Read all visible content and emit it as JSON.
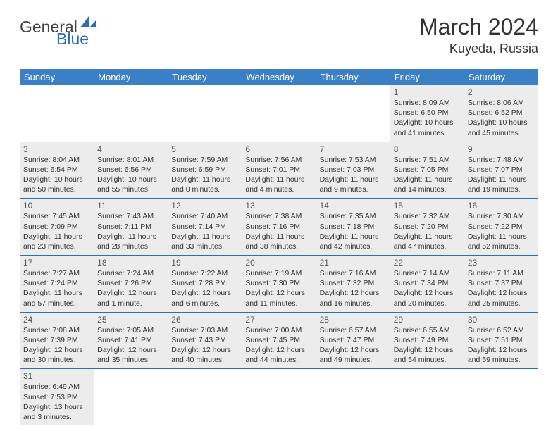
{
  "logo": {
    "text1": "General",
    "text2": "Blue"
  },
  "title": "March 2024",
  "location": "Kuyeda, Russia",
  "colors": {
    "header_bg": "#3b7fc4",
    "header_text": "#ffffff",
    "row_border": "#2a6fb5",
    "shaded_bg": "#ececec",
    "text": "#333333",
    "logo_blue": "#2a6fb5"
  },
  "weekdays": [
    "Sunday",
    "Monday",
    "Tuesday",
    "Wednesday",
    "Thursday",
    "Friday",
    "Saturday"
  ],
  "layout": {
    "columns": 7,
    "rows": 6,
    "first_day_column": 5
  },
  "days": [
    {
      "n": 1,
      "sr": "8:09 AM",
      "ss": "6:50 PM",
      "dl": "10 hours and 41 minutes."
    },
    {
      "n": 2,
      "sr": "8:06 AM",
      "ss": "6:52 PM",
      "dl": "10 hours and 45 minutes."
    },
    {
      "n": 3,
      "sr": "8:04 AM",
      "ss": "6:54 PM",
      "dl": "10 hours and 50 minutes."
    },
    {
      "n": 4,
      "sr": "8:01 AM",
      "ss": "6:56 PM",
      "dl": "10 hours and 55 minutes."
    },
    {
      "n": 5,
      "sr": "7:59 AM",
      "ss": "6:59 PM",
      "dl": "11 hours and 0 minutes."
    },
    {
      "n": 6,
      "sr": "7:56 AM",
      "ss": "7:01 PM",
      "dl": "11 hours and 4 minutes."
    },
    {
      "n": 7,
      "sr": "7:53 AM",
      "ss": "7:03 PM",
      "dl": "11 hours and 9 minutes."
    },
    {
      "n": 8,
      "sr": "7:51 AM",
      "ss": "7:05 PM",
      "dl": "11 hours and 14 minutes."
    },
    {
      "n": 9,
      "sr": "7:48 AM",
      "ss": "7:07 PM",
      "dl": "11 hours and 19 minutes."
    },
    {
      "n": 10,
      "sr": "7:45 AM",
      "ss": "7:09 PM",
      "dl": "11 hours and 23 minutes."
    },
    {
      "n": 11,
      "sr": "7:43 AM",
      "ss": "7:11 PM",
      "dl": "11 hours and 28 minutes."
    },
    {
      "n": 12,
      "sr": "7:40 AM",
      "ss": "7:14 PM",
      "dl": "11 hours and 33 minutes."
    },
    {
      "n": 13,
      "sr": "7:38 AM",
      "ss": "7:16 PM",
      "dl": "11 hours and 38 minutes."
    },
    {
      "n": 14,
      "sr": "7:35 AM",
      "ss": "7:18 PM",
      "dl": "11 hours and 42 minutes."
    },
    {
      "n": 15,
      "sr": "7:32 AM",
      "ss": "7:20 PM",
      "dl": "11 hours and 47 minutes."
    },
    {
      "n": 16,
      "sr": "7:30 AM",
      "ss": "7:22 PM",
      "dl": "11 hours and 52 minutes."
    },
    {
      "n": 17,
      "sr": "7:27 AM",
      "ss": "7:24 PM",
      "dl": "11 hours and 57 minutes."
    },
    {
      "n": 18,
      "sr": "7:24 AM",
      "ss": "7:26 PM",
      "dl": "12 hours and 1 minute."
    },
    {
      "n": 19,
      "sr": "7:22 AM",
      "ss": "7:28 PM",
      "dl": "12 hours and 6 minutes."
    },
    {
      "n": 20,
      "sr": "7:19 AM",
      "ss": "7:30 PM",
      "dl": "12 hours and 11 minutes."
    },
    {
      "n": 21,
      "sr": "7:16 AM",
      "ss": "7:32 PM",
      "dl": "12 hours and 16 minutes."
    },
    {
      "n": 22,
      "sr": "7:14 AM",
      "ss": "7:34 PM",
      "dl": "12 hours and 20 minutes."
    },
    {
      "n": 23,
      "sr": "7:11 AM",
      "ss": "7:37 PM",
      "dl": "12 hours and 25 minutes."
    },
    {
      "n": 24,
      "sr": "7:08 AM",
      "ss": "7:39 PM",
      "dl": "12 hours and 30 minutes."
    },
    {
      "n": 25,
      "sr": "7:05 AM",
      "ss": "7:41 PM",
      "dl": "12 hours and 35 minutes."
    },
    {
      "n": 26,
      "sr": "7:03 AM",
      "ss": "7:43 PM",
      "dl": "12 hours and 40 minutes."
    },
    {
      "n": 27,
      "sr": "7:00 AM",
      "ss": "7:45 PM",
      "dl": "12 hours and 44 minutes."
    },
    {
      "n": 28,
      "sr": "6:57 AM",
      "ss": "7:47 PM",
      "dl": "12 hours and 49 minutes."
    },
    {
      "n": 29,
      "sr": "6:55 AM",
      "ss": "7:49 PM",
      "dl": "12 hours and 54 minutes."
    },
    {
      "n": 30,
      "sr": "6:52 AM",
      "ss": "7:51 PM",
      "dl": "12 hours and 59 minutes."
    },
    {
      "n": 31,
      "sr": "6:49 AM",
      "ss": "7:53 PM",
      "dl": "13 hours and 3 minutes."
    }
  ],
  "labels": {
    "sunrise": "Sunrise:",
    "sunset": "Sunset:",
    "daylight": "Daylight:"
  }
}
